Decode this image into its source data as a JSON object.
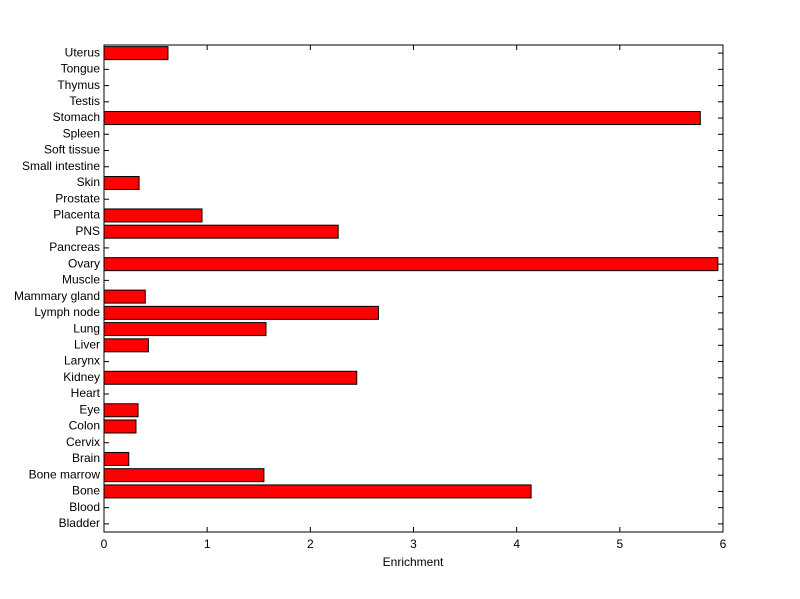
{
  "chart_data": {
    "type": "barh",
    "xlabel": "Enrichment",
    "color": "#ff0000",
    "categories": [
      "Bladder",
      "Blood",
      "Bone",
      "Bone marrow",
      "Brain",
      "Cervix",
      "Colon",
      "Eye",
      "Heart",
      "Kidney",
      "Larynx",
      "Liver",
      "Lung",
      "Lymph node",
      "Mammary gland",
      "Muscle",
      "Ovary",
      "Pancreas",
      "PNS",
      "Placenta",
      "Prostate",
      "Skin",
      "Small intestine",
      "Soft tissue",
      "Spleen",
      "Stomach",
      "Testis",
      "Thymus",
      "Tongue",
      "Uterus"
    ],
    "values": [
      0,
      0,
      4.14,
      1.55,
      0.24,
      0,
      0.31,
      0.33,
      0,
      2.45,
      0,
      0.43,
      1.57,
      2.66,
      0.4,
      0,
      5.95,
      0,
      2.27,
      0.95,
      0,
      0.34,
      0,
      0,
      0,
      5.78,
      0,
      0,
      0,
      0.62
    ],
    "xlim": [
      0,
      6
    ],
    "xticks": [
      0,
      1,
      2,
      3,
      4,
      5,
      6
    ]
  }
}
